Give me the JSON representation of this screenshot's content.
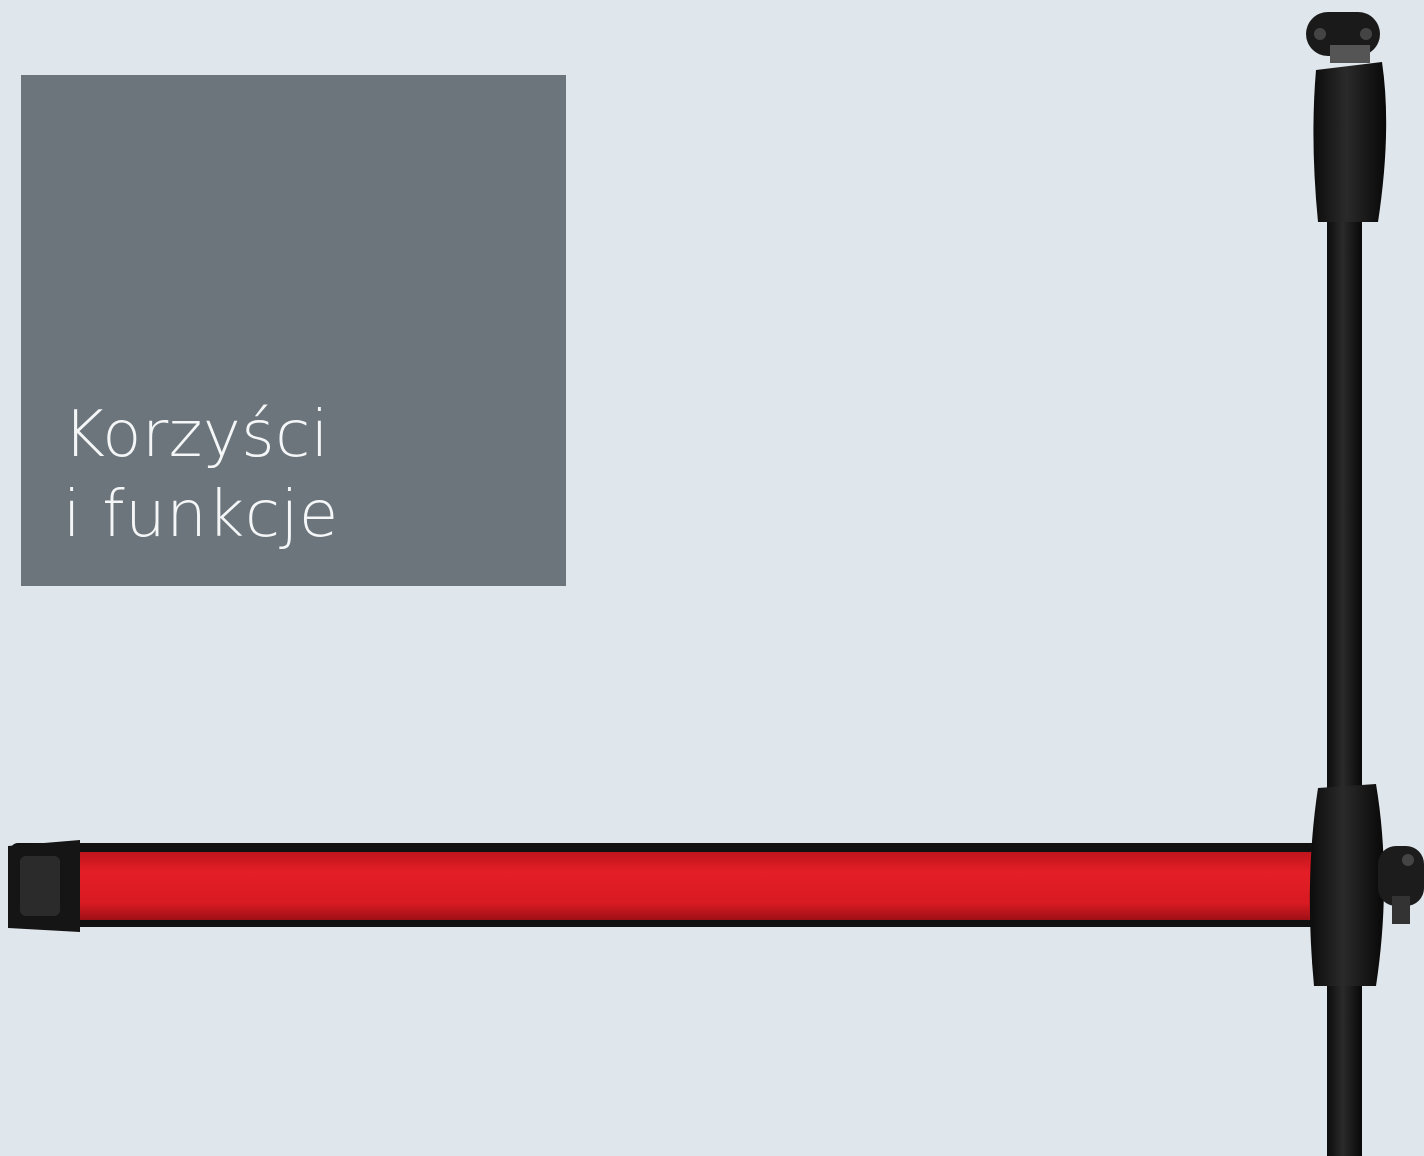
{
  "header": {
    "title_line_1": "Korzyści",
    "title_line_2": "i funkcje"
  }
}
